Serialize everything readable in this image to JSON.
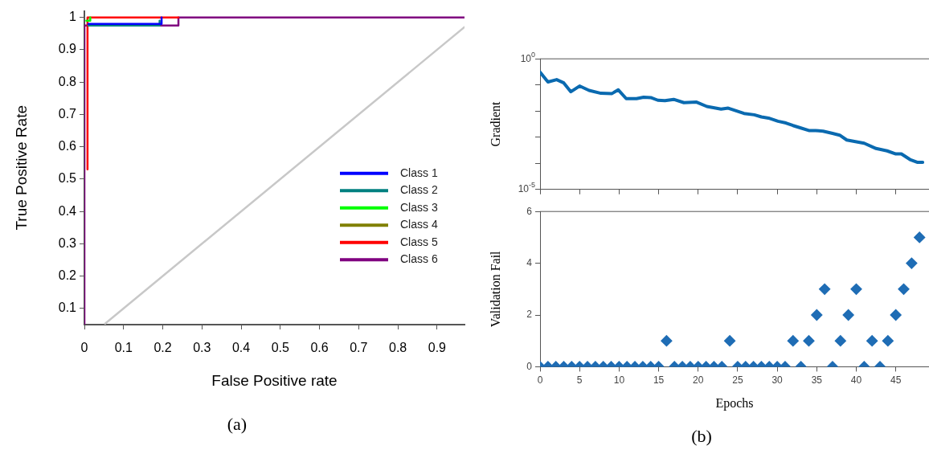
{
  "chart_data": [
    {
      "type": "line",
      "xlabel": "False Positive rate",
      "ylabel": "True Positive Rate",
      "xlim": [
        0,
        0.97
      ],
      "ylim": [
        0.05,
        1.02
      ],
      "xticks": [
        0,
        0.1,
        0.2,
        0.3,
        0.4,
        0.5,
        0.6,
        0.7,
        0.8,
        0.9
      ],
      "yticks": [
        0.1,
        0.2,
        0.3,
        0.4,
        0.5,
        0.6,
        0.7,
        0.8,
        0.9,
        1
      ],
      "grid": false,
      "legend": "bottom right",
      "marker": "none",
      "annotations": [
        "(a)"
      ],
      "series": [
        {
          "name": "Class 1",
          "color": "#0000ff",
          "x": [
            0.01,
            0.197,
            0.197
          ],
          "values": [
            0.98,
            0.98,
            1
          ]
        },
        {
          "name": "Class 2",
          "color": "#008080",
          "x": [
            0.01,
            0.192,
            0.192
          ],
          "values": [
            0.975,
            0.975,
            0.99
          ]
        },
        {
          "name": "Class 3",
          "color": "#00ff00",
          "x": [
            0.005,
            0.015,
            0.015
          ],
          "values": [
            0.99,
            0.99,
            1
          ]
        },
        {
          "name": "Class 4",
          "color": "#808000"
        },
        {
          "name": "Class 5",
          "color": "#ff0000",
          "x": [
            0.008,
            0.008,
            0.24
          ],
          "values": [
            0.53,
            1,
            1
          ]
        },
        {
          "name": "Class 6",
          "color": "#800080",
          "x": [
            0,
            0,
            0.24,
            0.24,
            0.97
          ],
          "values": [
            0.05,
            0.975,
            0.975,
            1,
            1
          ]
        },
        {
          "color": "#c8c8c8",
          "x": [
            0.053,
            0.97
          ],
          "values": [
            0.053,
            0.97
          ]
        }
      ]
    },
    {
      "type": "line",
      "ylabel": "Gradient",
      "log": true,
      "xlim": [
        0,
        49.2
      ],
      "ylim": [
        1e-05,
        1
      ],
      "xticks": [
        {
          "value": 0,
          "label": null
        },
        {
          "value": 5,
          "label": null
        },
        {
          "value": 10,
          "label": null
        },
        {
          "value": 15,
          "label": null
        },
        {
          "value": 20,
          "label": null
        },
        {
          "value": 25,
          "label": null
        },
        {
          "value": 30,
          "label": null
        },
        {
          "value": 35,
          "label": null
        },
        {
          "value": 40,
          "label": null
        },
        {
          "value": 45,
          "label": null
        }
      ],
      "yticks": [
        {
          "value": 1e-05,
          "label": "10$^{-5}$"
        },
        {
          "value": 0.0001,
          "label": null
        },
        {
          "value": 0.001,
          "label": null
        },
        {
          "value": 0.01,
          "label": null
        },
        {
          "value": 0.1,
          "label": null
        },
        {
          "value": 1,
          "label": "10$^{0}$"
        }
      ],
      "tick_labels": "y",
      "grid": false,
      "legend": false,
      "marker": "none",
      "series": [
        {
          "color": "#0a6ab0",
          "x": [
            0,
            1,
            2.1,
            3,
            3.9,
            5,
            6.2,
            7.7,
            9.1,
            9.9,
            10.9,
            12.2,
            13.1,
            14,
            14.9,
            15.8,
            16.9,
            18.2,
            19.8,
            21.1,
            22.9,
            23.8,
            25.8,
            27.1,
            28,
            28.9,
            30.1,
            31.1,
            32,
            32.9,
            34,
            34.9,
            35.8,
            37,
            37.9,
            38.8,
            39.9,
            41,
            42.5,
            43.9,
            45,
            45.7,
            46.8,
            47.7,
            48.4
          ],
          "values": [
            0.31,
            0.13,
            0.16,
            0.12,
            0.055,
            0.091,
            0.062,
            0.048,
            0.047,
            0.065,
            0.03,
            0.03,
            0.034,
            0.033,
            0.026,
            0.025,
            0.028,
            0.021,
            0.022,
            0.015,
            0.012,
            0.013,
            0.0081,
            0.0072,
            0.006,
            0.0054,
            0.0041,
            0.0035,
            0.0028,
            0.0023,
            0.0018,
            0.0018,
            0.0017,
            0.0014,
            0.0012,
            0.00078,
            0.00068,
            0.00059,
            0.00037,
            0.0003,
            0.00023,
            0.00023,
            0.00014,
            0.00011,
            0.00011
          ]
        }
      ]
    },
    {
      "type": "scatter",
      "xlabel": "Epochs",
      "ylabel": "Validation Fail",
      "xlim": [
        0,
        49.2
      ],
      "ylim": [
        0,
        6
      ],
      "xticks": [
        0,
        5,
        10,
        15,
        20,
        25,
        30,
        35,
        40,
        45
      ],
      "yticks": [
        0,
        2,
        4,
        6
      ],
      "grid": false,
      "legend": false,
      "marker": "diamond",
      "annotations": [
        "(b)"
      ],
      "series": [
        {
          "color": "#1f6db5",
          "x": [
            0,
            1,
            2,
            3,
            4,
            5,
            6,
            7,
            8,
            9,
            10,
            11,
            12,
            13,
            14,
            15,
            16,
            17,
            18,
            19,
            20,
            21,
            22,
            23,
            24,
            25,
            26,
            27,
            28,
            29,
            30,
            31,
            32,
            33,
            34,
            35,
            36,
            37,
            38,
            39,
            40,
            41,
            42,
            43,
            44,
            45,
            46,
            47,
            48
          ],
          "values": [
            0,
            0,
            0,
            0,
            0,
            0,
            0,
            0,
            0,
            0,
            0,
            0,
            0,
            0,
            0,
            0,
            1,
            0,
            0,
            0,
            0,
            0,
            0,
            0,
            1,
            0,
            0,
            0,
            0,
            0,
            0,
            0,
            1,
            0,
            1,
            2,
            3,
            0,
            1,
            2,
            3,
            0,
            1,
            0,
            1,
            2,
            3,
            4,
            5
          ]
        }
      ]
    }
  ]
}
